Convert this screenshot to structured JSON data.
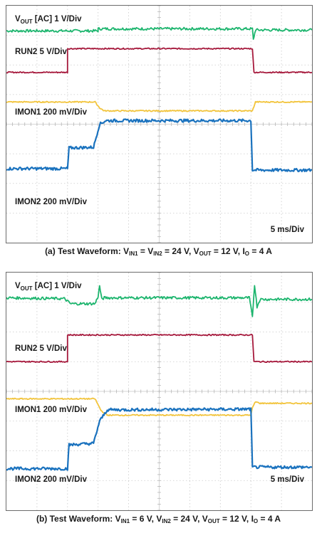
{
  "chart_data": [
    {
      "type": "line",
      "panel": "a",
      "caption": [
        "(a) Test Waveform: V",
        "IN1",
        " = V",
        "IN2",
        " = 24 V, V",
        "OUT",
        " = 12 V, I",
        "O",
        " = 4 A"
      ],
      "time_scale": "5 ms/Div",
      "grid": true,
      "divisions": {
        "x": 10,
        "y": 8
      },
      "channels": [
        {
          "name_parts": [
            "V",
            "OUT",
            " [AC] 1 V/Div"
          ],
          "color": "#1db56e",
          "points": [
            [
              0,
              7.15
            ],
            [
              3.0,
              7.15
            ],
            [
              3.0,
              7.22
            ],
            [
              8.05,
              7.22
            ],
            [
              8.08,
              6.85
            ],
            [
              8.15,
              7.18
            ],
            [
              10,
              7.18
            ]
          ]
        },
        {
          "name_parts": [
            "RUN2 5 V/Div"
          ],
          "color": "#a6193c",
          "points": [
            [
              0,
              5.75
            ],
            [
              2.0,
              5.75
            ],
            [
              2.0,
              6.55
            ],
            [
              8.05,
              6.55
            ],
            [
              8.1,
              5.75
            ],
            [
              10,
              5.75
            ]
          ]
        },
        {
          "name_parts": [
            "IMON1 200 mV/Div"
          ],
          "color": "#f2c43c",
          "points": [
            [
              0,
              4.75
            ],
            [
              2.9,
              4.75
            ],
            [
              3.05,
              4.55
            ],
            [
              3.2,
              4.45
            ],
            [
              8.05,
              4.45
            ],
            [
              8.15,
              4.75
            ],
            [
              10,
              4.75
            ]
          ]
        },
        {
          "name_parts": [
            "IMON2 200 mV/Div"
          ],
          "color": "#1a72be",
          "points": [
            [
              0,
              2.5
            ],
            [
              2.0,
              2.5
            ],
            [
              2.05,
              3.2
            ],
            [
              2.85,
              3.22
            ],
            [
              3.05,
              4.0
            ],
            [
              3.25,
              4.12
            ],
            [
              3.6,
              4.12
            ],
            [
              8.0,
              4.12
            ],
            [
              8.05,
              2.45
            ],
            [
              10,
              2.45
            ]
          ]
        }
      ]
    },
    {
      "type": "line",
      "panel": "b",
      "caption": [
        "(b) Test Waveform: V",
        "IN1",
        " = 6 V, V",
        "IN2",
        " = 24 V, V",
        "OUT",
        " = 12 V, I",
        "O",
        " = 4 A"
      ],
      "time_scale": "5 ms/Div",
      "grid": true,
      "divisions": {
        "x": 10,
        "y": 8
      },
      "channels": [
        {
          "name_parts": [
            "V",
            "OUT",
            " [AC] 1 V/Div"
          ],
          "color": "#1db56e",
          "points": [
            [
              0,
              7.15
            ],
            [
              1.9,
              7.12
            ],
            [
              2.1,
              6.95
            ],
            [
              2.9,
              6.95
            ],
            [
              3.0,
              7.2
            ],
            [
              3.05,
              7.55
            ],
            [
              3.12,
              7.1
            ],
            [
              3.2,
              7.15
            ],
            [
              7.95,
              7.15
            ],
            [
              8.05,
              6.5
            ],
            [
              8.12,
              7.6
            ],
            [
              8.2,
              6.85
            ],
            [
              8.3,
              7.1
            ],
            [
              10,
              7.1
            ]
          ]
        },
        {
          "name_parts": [
            "RUN2 5 V/Div"
          ],
          "color": "#a6193c",
          "points": [
            [
              0,
              5.0
            ],
            [
              2.0,
              5.0
            ],
            [
              2.0,
              5.9
            ],
            [
              8.05,
              5.9
            ],
            [
              8.1,
              5.0
            ],
            [
              10,
              5.0
            ]
          ]
        },
        {
          "name_parts": [
            "IMON1 200 mV/Div"
          ],
          "color": "#f2c43c",
          "points": [
            [
              0,
              3.75
            ],
            [
              2.9,
              3.75
            ],
            [
              3.1,
              3.35
            ],
            [
              3.3,
              3.2
            ],
            [
              8.0,
              3.2
            ],
            [
              8.05,
              3.45
            ],
            [
              8.15,
              3.65
            ],
            [
              8.3,
              3.6
            ],
            [
              10,
              3.6
            ]
          ]
        },
        {
          "name_parts": [
            "IMON2 200 mV/Div"
          ],
          "color": "#1a72be",
          "points": [
            [
              0,
              1.4
            ],
            [
              2.0,
              1.4
            ],
            [
              2.05,
              2.2
            ],
            [
              2.85,
              2.25
            ],
            [
              3.05,
              3.0
            ],
            [
              3.3,
              3.38
            ],
            [
              8.0,
              3.4
            ],
            [
              8.05,
              1.45
            ],
            [
              10,
              1.45
            ]
          ]
        }
      ]
    }
  ]
}
